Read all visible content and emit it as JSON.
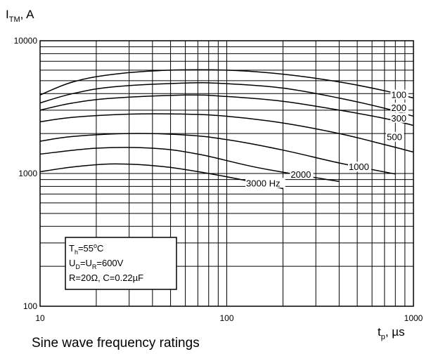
{
  "chart_data": {
    "type": "line",
    "x_scale": "log",
    "y_scale": "log",
    "xlim": [
      10,
      1000
    ],
    "ylim": [
      100,
      10000
    ],
    "grid": true,
    "ylabel": {
      "main": "I",
      "sub": "TM",
      "rest": ", A"
    },
    "xlabel": {
      "main": "t",
      "sub": "p",
      "rest": ", µs"
    },
    "x_ticks": [
      {
        "value": 10,
        "label": "10"
      },
      {
        "value": 100,
        "label": "100"
      },
      {
        "value": 1000,
        "label": "1000"
      }
    ],
    "y_ticks": [
      {
        "value": 100,
        "label": "100"
      },
      {
        "value": 1000,
        "label": "1000"
      },
      {
        "value": 10000,
        "label": "10000"
      }
    ],
    "series": [
      {
        "name": "100",
        "points": [
          [
            10,
            3900
          ],
          [
            15,
            4900
          ],
          [
            25,
            5600
          ],
          [
            50,
            6000
          ],
          [
            100,
            6000
          ],
          [
            200,
            5600
          ],
          [
            400,
            4900
          ],
          [
            700,
            4200
          ],
          [
            1000,
            3700
          ]
        ]
      },
      {
        "name": "200",
        "points": [
          [
            10,
            3400
          ],
          [
            15,
            4000
          ],
          [
            25,
            4500
          ],
          [
            60,
            4800
          ],
          [
            100,
            4750
          ],
          [
            200,
            4400
          ],
          [
            400,
            3700
          ],
          [
            700,
            3100
          ],
          [
            1000,
            2700
          ]
        ]
      },
      {
        "name": "300",
        "points": [
          [
            10,
            3000
          ],
          [
            15,
            3400
          ],
          [
            25,
            3700
          ],
          [
            60,
            3900
          ],
          [
            100,
            3800
          ],
          [
            200,
            3500
          ],
          [
            400,
            3000
          ],
          [
            700,
            2600
          ],
          [
            1000,
            2300
          ]
        ]
      },
      {
        "name": "500",
        "points": [
          [
            10,
            2450
          ],
          [
            15,
            2650
          ],
          [
            30,
            2800
          ],
          [
            60,
            2800
          ],
          [
            100,
            2700
          ],
          [
            200,
            2400
          ],
          [
            400,
            2000
          ],
          [
            700,
            1650
          ],
          [
            1000,
            1450
          ]
        ]
      },
      {
        "name": "1000",
        "points": [
          [
            10,
            1750
          ],
          [
            15,
            1900
          ],
          [
            30,
            2000
          ],
          [
            60,
            1950
          ],
          [
            100,
            1800
          ],
          [
            200,
            1500
          ],
          [
            400,
            1200
          ],
          [
            800,
            990
          ]
        ]
      },
      {
        "name": "2000",
        "points": [
          [
            10,
            1400
          ],
          [
            20,
            1550
          ],
          [
            40,
            1550
          ],
          [
            70,
            1400
          ],
          [
            150,
            1100
          ],
          [
            400,
            870
          ]
        ]
      },
      {
        "name": "3000 Hz",
        "points": [
          [
            10,
            1030
          ],
          [
            15,
            1120
          ],
          [
            25,
            1180
          ],
          [
            45,
            1130
          ],
          [
            80,
            1000
          ],
          [
            140,
            860
          ],
          [
            200,
            770
          ]
        ]
      }
    ],
    "curve_labels": [
      {
        "text": "100",
        "x": 760,
        "y": 3700
      },
      {
        "text": "200",
        "x": 760,
        "y": 2950
      },
      {
        "text": "300",
        "x": 760,
        "y": 2470
      },
      {
        "text": "500",
        "x": 720,
        "y": 1780
      },
      {
        "text": "1000",
        "x": 450,
        "y": 1060
      },
      {
        "text": "2000",
        "x": 220,
        "y": 930
      },
      {
        "text": "3000 Hz",
        "x": 127,
        "y": 800
      }
    ],
    "annotation": {
      "lines": [
        [
          {
            "t": "T"
          },
          {
            "t": "h",
            "sub": true
          },
          {
            "t": "=55"
          },
          {
            "t": "o",
            "sup": true
          },
          {
            "t": "C"
          }
        ],
        [
          {
            "t": "U"
          },
          {
            "t": "D",
            "sub": true
          },
          {
            "t": "=U"
          },
          {
            "t": "R",
            "sub": true
          },
          {
            "t": "=600V"
          }
        ],
        [
          {
            "t": "R=20Ω, C=0.22µF"
          }
        ]
      ]
    }
  },
  "caption": "Sine wave frequency ratings"
}
